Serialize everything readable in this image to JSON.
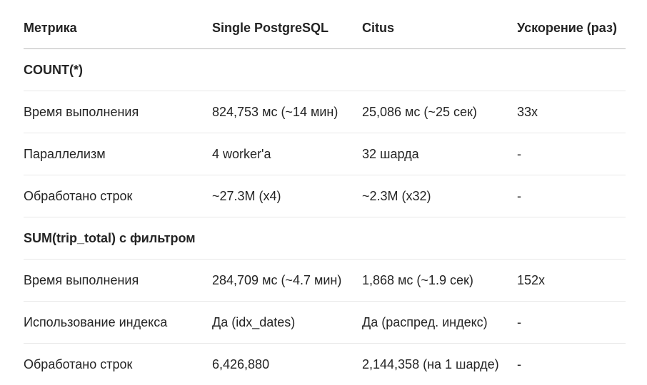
{
  "table": {
    "headers": [
      "Метрика",
      "Single PostgreSQL",
      "Citus",
      "Ускорение (раз)"
    ],
    "rows": [
      {
        "type": "section",
        "cells": [
          "COUNT(*)"
        ]
      },
      {
        "type": "data",
        "cells": [
          "Время выполнения",
          "824,753 мс (~14 мин)",
          "25,086 мс (~25 сек)",
          "33x"
        ]
      },
      {
        "type": "data",
        "cells": [
          "Параллелизм",
          "4 worker'а",
          "32 шарда",
          "-"
        ]
      },
      {
        "type": "data",
        "cells": [
          "Обработано строк",
          "~27.3M (x4)",
          "~2.3M (x32)",
          "-"
        ]
      },
      {
        "type": "section",
        "cells": [
          "SUM(trip_total) с фильтром"
        ]
      },
      {
        "type": "data",
        "cells": [
          "Время выполнения",
          "284,709 мс (~4.7 мин)",
          "1,868 мс (~1.9 сек)",
          "152x"
        ]
      },
      {
        "type": "data",
        "cells": [
          "Использование индекса",
          "Да (idx_dates)",
          "Да (распред. индекс)",
          "-"
        ]
      },
      {
        "type": "data",
        "cells": [
          "Обработано строк",
          "6,426,880",
          "2,144,358 (на 1 шарде)",
          "-"
        ]
      }
    ]
  }
}
